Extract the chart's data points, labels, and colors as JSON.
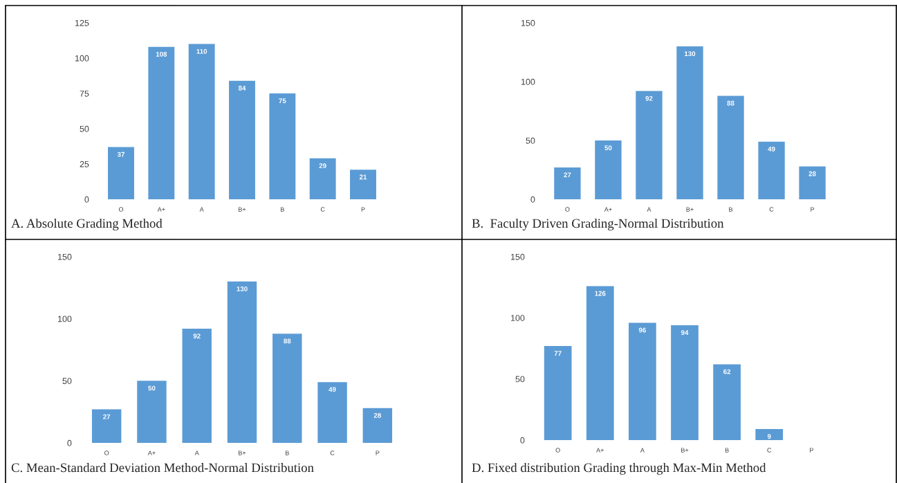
{
  "chart_data": [
    {
      "type": "bar",
      "title": "A. Absolute Grading Method",
      "categories": [
        "O",
        "A+",
        "A",
        "B+",
        "B",
        "C",
        "P"
      ],
      "values": [
        37,
        108,
        110,
        84,
        75,
        29,
        21
      ],
      "color": "#5b9bd5",
      "ylim": [
        0,
        125
      ],
      "yticks": [
        0,
        25,
        50,
        75,
        100,
        125
      ],
      "data_labels": true,
      "grid": false
    },
    {
      "type": "bar",
      "title": "B.  Faculty Driven Grading-Normal Distribution",
      "categories": [
        "O",
        "A+",
        "A",
        "B+",
        "B",
        "C",
        "P"
      ],
      "values": [
        27,
        50,
        92,
        130,
        88,
        49,
        28
      ],
      "color": "#5b9bd5",
      "ylim": [
        0,
        150
      ],
      "yticks": [
        0,
        50,
        100,
        150
      ],
      "data_labels": true,
      "grid": false
    },
    {
      "type": "bar",
      "title": "C. Mean-Standard Deviation Method-Normal Distribution",
      "categories": [
        "O",
        "A+",
        "A",
        "B+",
        "B",
        "C",
        "P"
      ],
      "values": [
        27,
        50,
        92,
        130,
        88,
        49,
        28
      ],
      "color": "#5b9bd5",
      "ylim": [
        0,
        150
      ],
      "yticks": [
        0,
        50,
        100,
        150
      ],
      "data_labels": true,
      "grid": false
    },
    {
      "type": "bar",
      "title": "D. Fixed distribution Grading through Max-Min Method",
      "categories": [
        "O",
        "A+",
        "A",
        "B+",
        "B",
        "C",
        "P"
      ],
      "values": [
        77,
        126,
        96,
        94,
        62,
        9,
        0
      ],
      "value_labels": [
        "77",
        "126",
        "96",
        "94",
        "62",
        "9",
        null
      ],
      "color": "#5b9bd5",
      "ylim": [
        0,
        150
      ],
      "yticks": [
        0,
        50,
        100,
        150
      ],
      "grid": false
    }
  ]
}
